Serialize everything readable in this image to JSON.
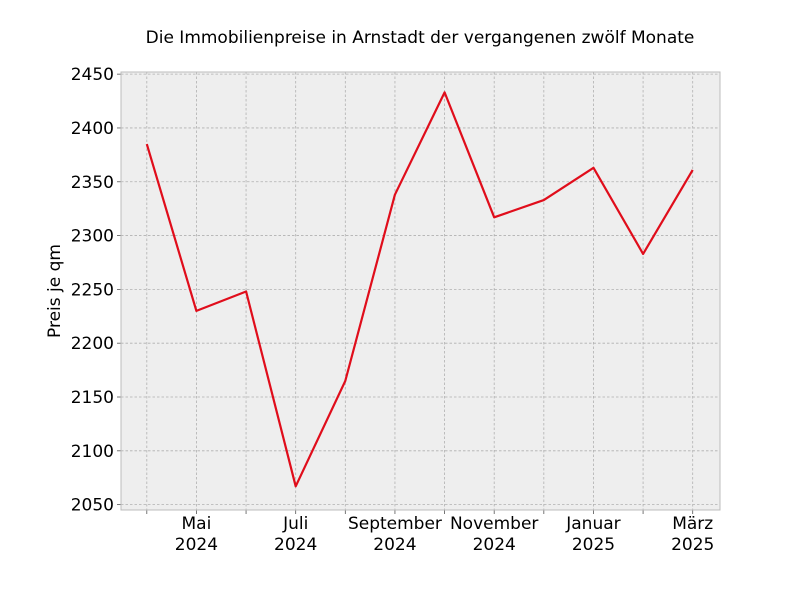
{
  "chart_data": {
    "type": "line",
    "title": "Die Immobilienpreise in Arnstadt der vergangenen zwölf Monate",
    "xlabel": "",
    "ylabel": "Preis je qm",
    "x": [
      "2024-04",
      "2024-05",
      "2024-06",
      "2024-07",
      "2024-08",
      "2024-09",
      "2024-10",
      "2024-11",
      "2024-12",
      "2025-01",
      "2025-02",
      "2025-03"
    ],
    "series": [
      {
        "values": [
          2385,
          2230,
          2248,
          2067,
          2165,
          2338,
          2433,
          2317,
          2333,
          2363,
          2283,
          2361
        ],
        "color": "#e00d1b"
      }
    ],
    "x_tick_labels": [
      {
        "x": "2024-05",
        "line1": "Mai",
        "line2": "2024"
      },
      {
        "x": "2024-07",
        "line1": "Juli",
        "line2": "2024"
      },
      {
        "x": "2024-09",
        "line1": "September",
        "line2": "2024"
      },
      {
        "x": "2024-11",
        "line1": "November",
        "line2": "2024"
      },
      {
        "x": "2025-01",
        "line1": "Januar",
        "line2": "2025"
      },
      {
        "x": "2025-03",
        "line1": "März",
        "line2": "2025"
      }
    ],
    "yticks": [
      2050,
      2100,
      2150,
      2200,
      2250,
      2300,
      2350,
      2400,
      2450
    ],
    "ylim": [
      2045,
      2452
    ],
    "grid": true,
    "background": "#eeeeee",
    "grid_color": "#b0b0b0"
  }
}
